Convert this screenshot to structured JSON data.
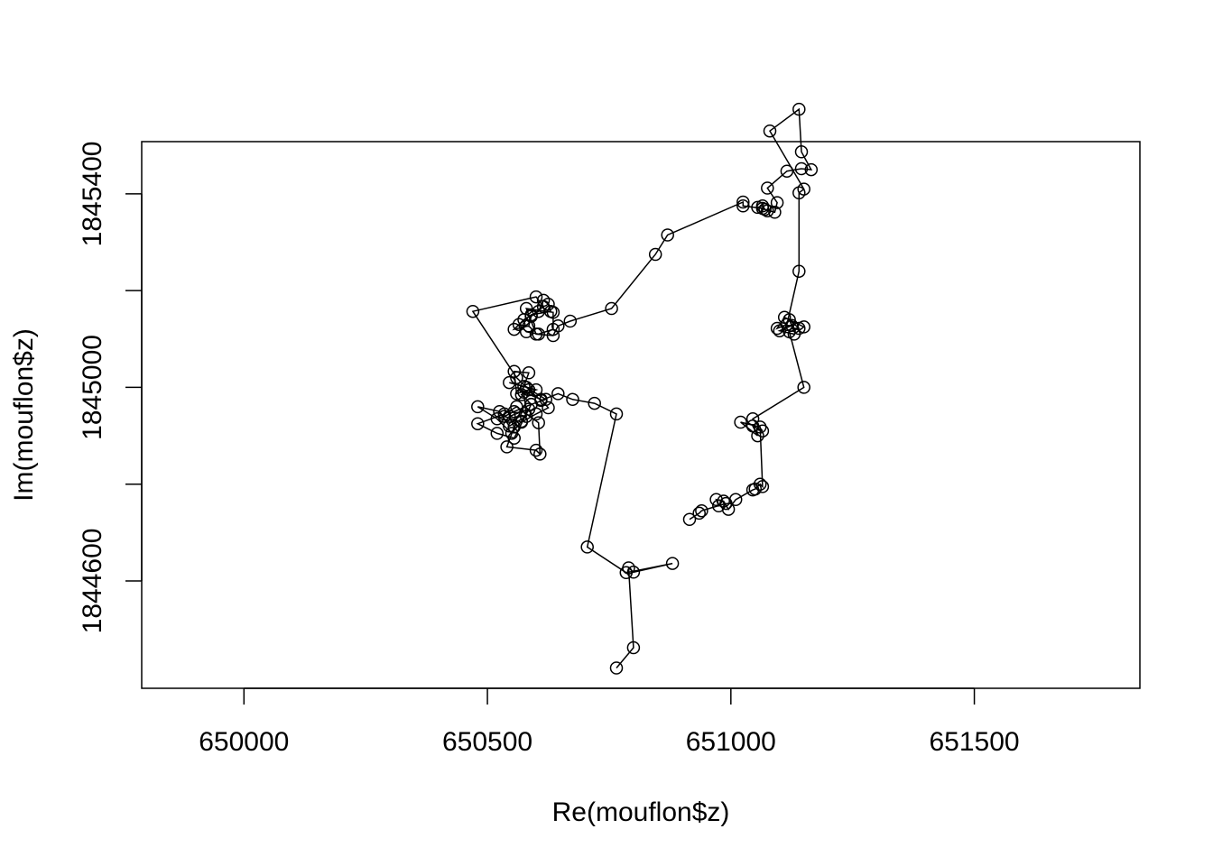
{
  "chart_data": {
    "type": "line",
    "markers": "open-circle",
    "xlabel": "Re(mouflon$z)",
    "ylabel": "Im(mouflon$z)",
    "xlim": [
      649790,
      651840
    ],
    "ylim": [
      1844378,
      1845508
    ],
    "xticks": [
      650000,
      650500,
      651000,
      651500
    ],
    "yticks": [
      1844600,
      1844800,
      1845000,
      1845200,
      1845400
    ],
    "yticklabels": [
      "1844600",
      "",
      "1845000",
      "",
      "1845400"
    ],
    "grid": false,
    "series": [
      {
        "points": [
          [
            650765,
            1844420
          ],
          [
            650800,
            1844462
          ],
          [
            650790,
            1844627
          ],
          [
            650800,
            1844618
          ],
          [
            650880,
            1844636
          ],
          [
            650785,
            1844617
          ],
          [
            650705,
            1844670
          ],
          [
            650765,
            1844945
          ],
          [
            650720,
            1844967
          ],
          [
            650675,
            1844975
          ],
          [
            650645,
            1844987
          ],
          [
            650610,
            1844973
          ],
          [
            650585,
            1844995
          ],
          [
            650560,
            1844987
          ],
          [
            650555,
            1845033
          ],
          [
            650585,
            1845030
          ],
          [
            650575,
            1845002
          ],
          [
            650545,
            1845010
          ],
          [
            650600,
            1844995
          ],
          [
            650570,
            1844985
          ],
          [
            650590,
            1844965
          ],
          [
            650555,
            1844950
          ],
          [
            650535,
            1844940
          ],
          [
            650570,
            1844928
          ],
          [
            650600,
            1844945
          ],
          [
            650625,
            1844958
          ],
          [
            650610,
            1844975
          ],
          [
            650575,
            1844990
          ],
          [
            650580,
            1844940
          ],
          [
            650545,
            1844920
          ],
          [
            650525,
            1844950
          ],
          [
            650480,
            1844960
          ],
          [
            650520,
            1844935
          ],
          [
            650550,
            1844905
          ],
          [
            650570,
            1844930
          ],
          [
            650585,
            1844955
          ],
          [
            650545,
            1844940
          ],
          [
            650555,
            1844918
          ],
          [
            650540,
            1844877
          ],
          [
            650600,
            1844870
          ],
          [
            650608,
            1844862
          ],
          [
            650605,
            1844927
          ],
          [
            650560,
            1844960
          ],
          [
            650535,
            1844945
          ],
          [
            650480,
            1844925
          ],
          [
            650520,
            1844905
          ],
          [
            650555,
            1844895
          ],
          [
            650590,
            1844965
          ],
          [
            650620,
            1844975
          ],
          [
            650580,
            1845000
          ],
          [
            650560,
            1845020
          ],
          [
            650470,
            1845157
          ],
          [
            650600,
            1845187
          ],
          [
            650615,
            1845167
          ],
          [
            650590,
            1845147
          ],
          [
            650585,
            1845127
          ],
          [
            650555,
            1845120
          ],
          [
            650575,
            1845140
          ],
          [
            650605,
            1845157
          ],
          [
            650615,
            1845180
          ],
          [
            650625,
            1845172
          ],
          [
            650630,
            1845157
          ],
          [
            650590,
            1845150
          ],
          [
            650565,
            1845130
          ],
          [
            650580,
            1845115
          ],
          [
            650605,
            1845110
          ],
          [
            650635,
            1845120
          ],
          [
            650635,
            1845155
          ],
          [
            650580,
            1845163
          ],
          [
            650600,
            1845110
          ],
          [
            650635,
            1845107
          ],
          [
            650645,
            1845127
          ],
          [
            650670,
            1845137
          ],
          [
            650755,
            1845163
          ],
          [
            650845,
            1845275
          ],
          [
            650870,
            1845315
          ],
          [
            651025,
            1845383
          ],
          [
            651025,
            1845375
          ],
          [
            651065,
            1845370
          ],
          [
            651075,
            1845365
          ],
          [
            651070,
            1845368
          ],
          [
            651065,
            1845375
          ],
          [
            651055,
            1845372
          ],
          [
            651090,
            1845362
          ],
          [
            651095,
            1845382
          ],
          [
            651075,
            1845412
          ],
          [
            651115,
            1845447
          ],
          [
            651145,
            1845452
          ],
          [
            651165,
            1845450
          ],
          [
            651145,
            1845487
          ],
          [
            651140,
            1845575
          ],
          [
            651080,
            1845530
          ],
          [
            651150,
            1845410
          ],
          [
            651140,
            1845402
          ],
          [
            651140,
            1845240
          ],
          [
            651115,
            1845130
          ],
          [
            651095,
            1845122
          ],
          [
            651110,
            1845145
          ],
          [
            651150,
            1845125
          ],
          [
            651130,
            1845110
          ],
          [
            651100,
            1845117
          ],
          [
            651125,
            1845128
          ],
          [
            651120,
            1845140
          ],
          [
            651140,
            1845122
          ],
          [
            651120,
            1845115
          ],
          [
            651150,
            1845000
          ],
          [
            651045,
            1844935
          ],
          [
            651065,
            1844910
          ],
          [
            651045,
            1844920
          ],
          [
            651055,
            1844900
          ],
          [
            651020,
            1844928
          ],
          [
            651060,
            1844918
          ],
          [
            651065,
            1844795
          ],
          [
            651060,
            1844800
          ],
          [
            651050,
            1844790
          ],
          [
            651045,
            1844788
          ],
          [
            651010,
            1844768
          ],
          [
            650995,
            1844748
          ],
          [
            650985,
            1844765
          ],
          [
            650970,
            1844768
          ],
          [
            650975,
            1844755
          ],
          [
            650990,
            1844760
          ],
          [
            650940,
            1844745
          ],
          [
            650935,
            1844740
          ],
          [
            650915,
            1844727
          ]
        ]
      }
    ]
  }
}
